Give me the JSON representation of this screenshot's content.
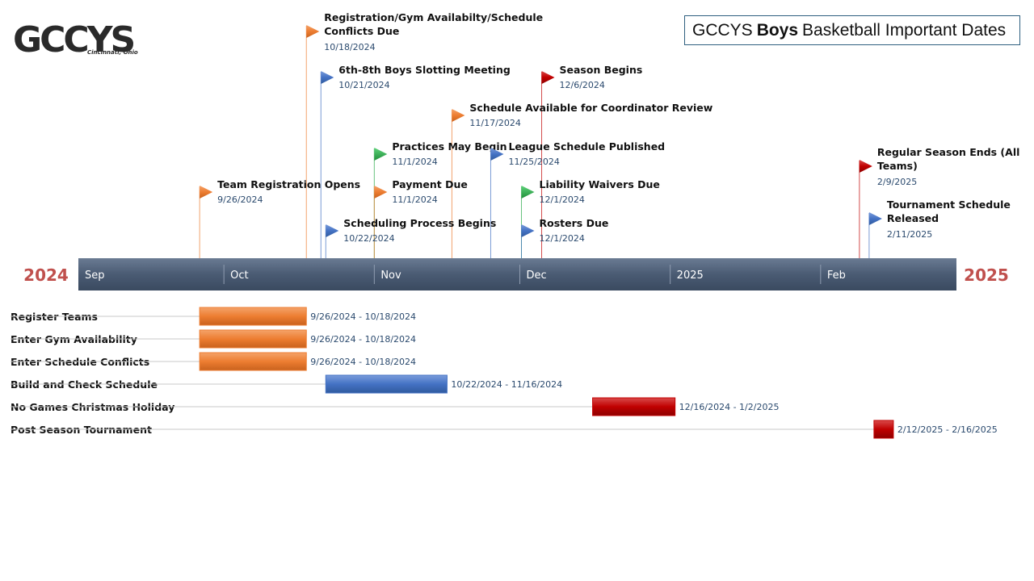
{
  "title": {
    "prefix": "GCCYS",
    "emphasis": "Boys",
    "suffix": "Basketball Important Dates"
  },
  "logo": {
    "text": "GCCYS",
    "subtext": "Cincinnati, Ohio"
  },
  "colors": {
    "orange": "#ed7d31",
    "blue": "#4472c4",
    "green": "#2bab4a",
    "red": "#c00000",
    "axis": "#4a5b73"
  },
  "chart_data": {
    "type": "timeline",
    "start_year_label": "2024",
    "end_year_label": "2025",
    "axis_ticks": [
      "Sep",
      "Oct",
      "Nov",
      "Dec",
      "2025",
      "Feb"
    ],
    "milestones": [
      {
        "title": "Registration/Gym Availabilty/Schedule Conflicts Due",
        "date": "10/18/2024",
        "color": "orange"
      },
      {
        "title": "6th-8th Boys Slotting Meeting",
        "date": "10/21/2024",
        "color": "blue"
      },
      {
        "title": "Season Begins",
        "date": "12/6/2024",
        "color": "red"
      },
      {
        "title": "Schedule Available for Coordinator Review",
        "date": "11/17/2024",
        "color": "orange"
      },
      {
        "title": "Practices May Begin",
        "date": "11/1/2024",
        "color": "green"
      },
      {
        "title": "League Schedule Published",
        "date": "11/25/2024",
        "color": "blue"
      },
      {
        "title": "Regular Season Ends (All Teams)",
        "date": "2/9/2025",
        "color": "red"
      },
      {
        "title": "Team Registration Opens",
        "date": "9/26/2024",
        "color": "orange"
      },
      {
        "title": "Payment Due",
        "date": "11/1/2024",
        "color": "orange"
      },
      {
        "title": "Liability Waivers Due",
        "date": "12/1/2024",
        "color": "green"
      },
      {
        "title": "Tournament Schedule Released",
        "date": "2/11/2025",
        "color": "blue"
      },
      {
        "title": "Scheduling Process Begins",
        "date": "10/22/2024",
        "color": "blue"
      },
      {
        "title": "Rosters Due",
        "date": "12/1/2024",
        "color": "blue"
      }
    ],
    "tasks": [
      {
        "label": "Register Teams",
        "range": "9/26/2024 - 10/18/2024",
        "start": "2024-09-26",
        "end": "2024-10-18",
        "color": "orange"
      },
      {
        "label": "Enter Gym Availability",
        "range": "9/26/2024 - 10/18/2024",
        "start": "2024-09-26",
        "end": "2024-10-18",
        "color": "orange"
      },
      {
        "label": "Enter Schedule Conflicts",
        "range": "9/26/2024 - 10/18/2024",
        "start": "2024-09-26",
        "end": "2024-10-18",
        "color": "orange"
      },
      {
        "label": "Build and Check Schedule",
        "range": "10/22/2024 - 11/16/2024",
        "start": "2024-10-22",
        "end": "2024-11-16",
        "color": "blue"
      },
      {
        "label": "No Games Christmas Holiday",
        "range": "12/16/2024 - 1/2/2025",
        "start": "2024-12-16",
        "end": "2025-01-02",
        "color": "red"
      },
      {
        "label": "Post Season Tournament",
        "range": "2/12/2025 - 2/16/2025",
        "start": "2025-02-12",
        "end": "2025-02-16",
        "color": "red"
      }
    ]
  }
}
